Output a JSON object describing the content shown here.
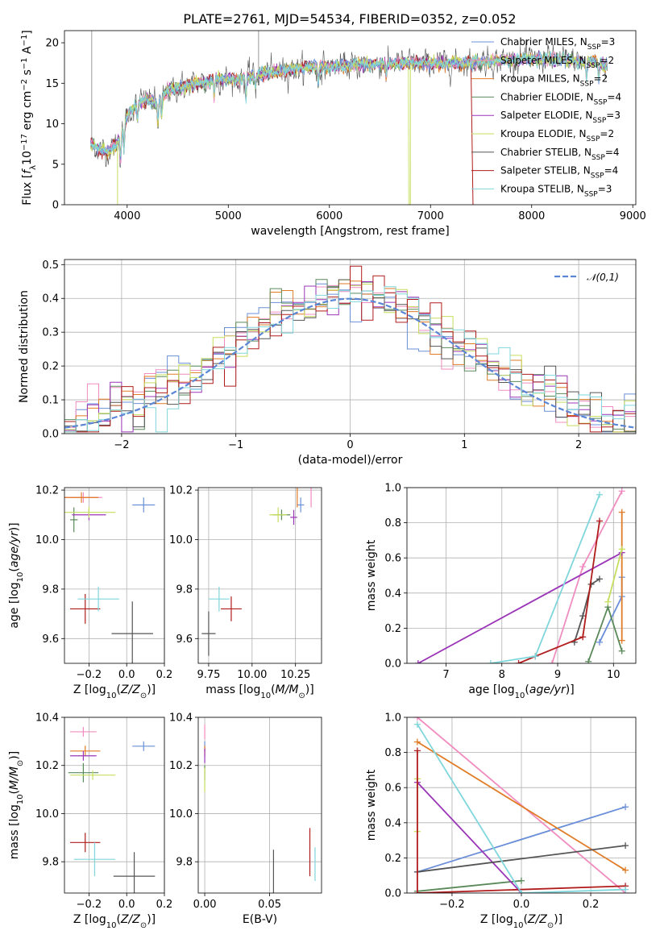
{
  "figure": {
    "title": "PLATE=2761, MJD=54534, FIBERID=0352, z=0.052"
  },
  "colors": {
    "chabrier_miles": "#6a8fd8",
    "salpeter_miles": "#f08cbf",
    "kroupa_miles": "#e07b26",
    "chabrier_elodie": "#5a8a5a",
    "salpeter_elodie": "#9b35b8",
    "kroupa_elodie": "#c5de5e",
    "chabrier_stelib": "#555555",
    "salpeter_stelib": "#b01c1c",
    "kroupa_stelib": "#7fd6dc",
    "normal": "#5b86d6"
  },
  "chart_data": [
    {
      "id": "spectrum",
      "type": "line",
      "title": "PLATE=2761, MJD=54534, FIBERID=0352, z=0.052",
      "xlabel": "wavelength [Angstrom, rest frame]",
      "ylabel": "Flux [f_λ10^-17 erg cm^-2 s^-1 A^-1]",
      "xlim": [
        3380,
        9030
      ],
      "ylim": [
        0,
        21.5
      ],
      "xticks": [
        4000,
        5000,
        6000,
        7000,
        8000,
        9000
      ],
      "yticks": [
        0,
        5,
        10,
        15,
        20
      ],
      "legend_position": "top-right",
      "legend": [
        {
          "name": "Chabrier MILES",
          "nssp": "3"
        },
        {
          "name": "Salpeter MILES",
          "nssp": "2"
        },
        {
          "name": "Kroupa MILES",
          "nssp": "2"
        },
        {
          "name": "Chabrier ELODIE",
          "nssp": "4"
        },
        {
          "name": "Salpeter ELODIE",
          "nssp": "3"
        },
        {
          "name": "Kroupa ELODIE",
          "nssp": "2"
        },
        {
          "name": "Chabrier STELIB",
          "nssp": "4"
        },
        {
          "name": "Salpeter STELIB",
          "nssp": "4"
        },
        {
          "name": "Kroupa STELIB",
          "nssp": "3"
        }
      ],
      "continuum": {
        "x": [
          3640,
          3700,
          3800,
          3900,
          3950,
          4000,
          4100,
          4200,
          4300,
          4400,
          4500,
          4700,
          4900,
          5100,
          5300,
          5500,
          5800,
          6000,
          6200,
          6400,
          6600,
          6800,
          7000,
          7200,
          7400,
          7600,
          7800,
          8000,
          8200,
          8400,
          8600,
          8750
        ],
        "y": [
          7.5,
          7.0,
          6.5,
          7.5,
          9.0,
          11.0,
          12.5,
          13.0,
          12.5,
          14.0,
          14.5,
          15.0,
          15.5,
          15.5,
          16.0,
          16.5,
          17.0,
          17.0,
          17.2,
          17.3,
          17.4,
          17.5,
          17.4,
          17.5,
          17.6,
          17.8,
          17.9,
          18.0,
          18.0,
          17.8,
          17.6,
          17.3
        ]
      }
    },
    {
      "id": "residuals",
      "type": "line",
      "xlabel": "(data-model)/error",
      "ylabel": "Normed distribution",
      "xlim": [
        -2.5,
        2.5
      ],
      "ylim": [
        0,
        0.515
      ],
      "xticks": [
        -2,
        -1,
        0,
        1,
        2
      ],
      "yticks": [
        0.0,
        0.1,
        0.2,
        0.3,
        0.4,
        0.5
      ],
      "grid": true,
      "legend_position": "top-right",
      "legend": [
        "𝒩(0,1)"
      ]
    },
    {
      "id": "age_vs_Z",
      "type": "scatter",
      "xlabel": "Z [log10(Z/Z⊙)]",
      "ylabel": "age  [log10(age/yr)]",
      "xlim": [
        -0.33,
        0.2
      ],
      "ylim": [
        9.5,
        10.21
      ],
      "xticks": [
        -0.2,
        0.0,
        0.2
      ],
      "yticks": [
        9.6,
        9.8,
        10.0,
        10.2
      ],
      "grid": true,
      "points": [
        {
          "s": "chabrier_miles",
          "x": 0.09,
          "y": 10.14,
          "xe": 0.06,
          "ye": 0.03
        },
        {
          "s": "salpeter_miles",
          "x": -0.23,
          "y": 10.17,
          "xe": 0.1,
          "ye": 0.0
        },
        {
          "s": "kroupa_miles",
          "x": -0.24,
          "y": 10.17,
          "xe": 0.09,
          "ye": 0.0
        },
        {
          "s": "chabrier_elodie",
          "x": -0.28,
          "y": 10.08,
          "xe": 0.02,
          "ye": 0.05
        },
        {
          "s": "salpeter_elodie",
          "x": -0.2,
          "y": 10.1,
          "xe": 0.09,
          "ye": 0.0
        },
        {
          "s": "kroupa_elodie",
          "x": -0.2,
          "y": 10.11,
          "xe": 0.14,
          "ye": 0.0
        },
        {
          "s": "chabrier_stelib",
          "x": 0.03,
          "y": 9.62,
          "xe": 0.11,
          "ye": 0.13
        },
        {
          "s": "salpeter_stelib",
          "x": -0.22,
          "y": 9.72,
          "xe": 0.08,
          "ye": 0.06
        },
        {
          "s": "kroupa_stelib",
          "x": -0.15,
          "y": 9.76,
          "xe": 0.11,
          "ye": 0.05
        }
      ]
    },
    {
      "id": "age_vs_mass",
      "type": "scatter",
      "xlabel": "mass [log10(M/M⊙)]",
      "ylabel": "",
      "xlim": [
        9.69,
        10.4
      ],
      "ylim": [
        9.5,
        10.21
      ],
      "xticks": [
        9.75,
        10.0,
        10.25
      ],
      "yticks": [
        9.6,
        9.8,
        10.0,
        10.2
      ],
      "grid": true,
      "points": [
        {
          "s": "chabrier_miles",
          "x": 10.28,
          "y": 10.14,
          "xe": 0.02,
          "ye": 0.03
        },
        {
          "s": "salpeter_miles",
          "x": 10.34,
          "y": 10.17,
          "xe": 0.0,
          "ye": 0.04
        },
        {
          "s": "kroupa_miles",
          "x": 10.26,
          "y": 10.17,
          "xe": 0.0,
          "ye": 0.04
        },
        {
          "s": "chabrier_elodie",
          "x": 10.17,
          "y": 10.1,
          "xe": 0.05,
          "ye": 0.0
        },
        {
          "s": "salpeter_elodie",
          "x": 10.24,
          "y": 10.09,
          "xe": 0.02,
          "ye": 0.03
        },
        {
          "s": "kroupa_elodie",
          "x": 10.15,
          "y": 10.1,
          "xe": 0.05,
          "ye": 0.03
        },
        {
          "s": "chabrier_stelib",
          "x": 9.75,
          "y": 9.62,
          "xe": 0.04,
          "ye": 0.09
        },
        {
          "s": "salpeter_stelib",
          "x": 9.88,
          "y": 9.72,
          "xe": 0.06,
          "ye": 0.05
        },
        {
          "s": "kroupa_stelib",
          "x": 9.81,
          "y": 9.76,
          "xe": 0.06,
          "ye": 0.05
        }
      ]
    },
    {
      "id": "mass_weight_vs_age",
      "type": "line",
      "xlabel": "age  [log10(age/yr)]",
      "ylabel": "mass weight",
      "xlim": [
        6.3,
        10.4
      ],
      "ylim": [
        0,
        1.0
      ],
      "xticks": [
        7,
        8,
        9,
        10
      ],
      "yticks": [
        0.0,
        0.2,
        0.4,
        0.6,
        0.8,
        1.0
      ],
      "grid": true,
      "series": [
        {
          "s": "chabrier_miles",
          "x": [
            9.75,
            10.15,
            10.15
          ],
          "y": [
            0.12,
            0.38,
            0.49
          ]
        },
        {
          "s": "salpeter_miles",
          "x": [
            8.9,
            9.45,
            10.15
          ],
          "y": [
            0.0,
            0.55,
            0.98
          ]
        },
        {
          "s": "kroupa_miles",
          "x": [
            10.15,
            10.15
          ],
          "y": [
            0.13,
            0.86
          ]
        },
        {
          "s": "chabrier_elodie",
          "x": [
            9.55,
            9.9,
            10.15
          ],
          "y": [
            0.01,
            0.32,
            0.07
          ]
        },
        {
          "s": "salpeter_elodie",
          "x": [
            6.5,
            10.15
          ],
          "y": [
            0.0,
            0.63
          ]
        },
        {
          "s": "kroupa_elodie",
          "x": [
            9.9,
            10.15
          ],
          "y": [
            0.35,
            0.65
          ]
        },
        {
          "s": "chabrier_stelib",
          "x": [
            9.3,
            9.45,
            9.6,
            9.75
          ],
          "y": [
            0.12,
            0.27,
            0.45,
            0.48
          ]
        },
        {
          "s": "salpeter_stelib",
          "x": [
            8.3,
            8.6,
            9.45,
            9.75
          ],
          "y": [
            0.0,
            0.04,
            0.15,
            0.81
          ]
        },
        {
          "s": "kroupa_stelib",
          "x": [
            7.8,
            8.6,
            9.75
          ],
          "y": [
            0.0,
            0.04,
            0.96
          ]
        }
      ]
    },
    {
      "id": "mass_vs_Z",
      "type": "scatter",
      "xlabel": "Z [log10(Z/Z⊙)]",
      "ylabel": "mass [log10(M/M⊙)]",
      "xlim": [
        -0.33,
        0.2
      ],
      "ylim": [
        9.67,
        10.4
      ],
      "xticks": [
        -0.2,
        0.0,
        0.2
      ],
      "yticks": [
        9.8,
        10.0,
        10.2,
        10.4
      ],
      "grid": true,
      "points": [
        {
          "s": "chabrier_miles",
          "x": 0.09,
          "y": 10.28,
          "xe": 0.06,
          "ye": 0.02
        },
        {
          "s": "salpeter_miles",
          "x": -0.23,
          "y": 10.34,
          "xe": 0.07,
          "ye": 0.02
        },
        {
          "s": "kroupa_miles",
          "x": -0.22,
          "y": 10.26,
          "xe": 0.08,
          "ye": 0.0
        },
        {
          "s": "chabrier_elodie",
          "x": -0.23,
          "y": 10.17,
          "xe": 0.08,
          "ye": 0.04
        },
        {
          "s": "salpeter_elodie",
          "x": -0.23,
          "y": 10.24,
          "xe": 0.07,
          "ye": 0.02
        },
        {
          "s": "kroupa_elodie",
          "x": -0.18,
          "y": 10.16,
          "xe": 0.12,
          "ye": 0.02
        },
        {
          "s": "chabrier_stelib",
          "x": 0.04,
          "y": 9.74,
          "xe": 0.11,
          "ye": 0.1
        },
        {
          "s": "salpeter_stelib",
          "x": -0.22,
          "y": 9.88,
          "xe": 0.08,
          "ye": 0.04
        },
        {
          "s": "kroupa_stelib",
          "x": -0.17,
          "y": 9.81,
          "xe": 0.11,
          "ye": 0.07
        }
      ]
    },
    {
      "id": "mass_vs_EBV",
      "type": "scatter",
      "xlabel": "E(B-V)",
      "ylabel": "",
      "xlim": [
        -0.005,
        0.09
      ],
      "ylim": [
        9.67,
        10.4
      ],
      "xticks": [
        0.0,
        0.05
      ],
      "yticks": [
        9.8,
        10.0,
        10.2,
        10.4
      ],
      "grid": true,
      "points": [
        {
          "s": "chabrier_miles",
          "x": 0.0,
          "y": 10.28,
          "xe": 0.0,
          "ye": 0.02
        },
        {
          "s": "salpeter_miles",
          "x": 0.0,
          "y": 10.34,
          "xe": 0.0,
          "ye": 0.03
        },
        {
          "s": "kroupa_miles",
          "x": 0.0,
          "y": 10.26,
          "xe": 0.0,
          "ye": 0.0
        },
        {
          "s": "chabrier_elodie",
          "x": 0.0,
          "y": 10.17,
          "xe": 0.0,
          "ye": 0.03
        },
        {
          "s": "salpeter_elodie",
          "x": 0.0,
          "y": 10.24,
          "xe": 0.0,
          "ye": 0.03
        },
        {
          "s": "kroupa_elodie",
          "x": 0.0,
          "y": 10.14,
          "xe": 0.0,
          "ye": 0.05
        },
        {
          "s": "chabrier_stelib",
          "x": 0.053,
          "y": 9.74,
          "xe": 0.0,
          "ye": 0.11
        },
        {
          "s": "salpeter_stelib",
          "x": 0.081,
          "y": 9.84,
          "xe": 0.0,
          "ye": 0.1
        },
        {
          "s": "kroupa_stelib",
          "x": 0.085,
          "y": 9.79,
          "xe": 0.0,
          "ye": 0.07
        }
      ]
    },
    {
      "id": "mass_weight_vs_Z",
      "type": "line",
      "xlabel": "Z [log10(Z/Z⊙)]",
      "ylabel": "mass weight",
      "xlim": [
        -0.33,
        0.33
      ],
      "ylim": [
        0,
        1.0
      ],
      "xticks": [
        -0.2,
        0.0,
        0.2
      ],
      "yticks": [
        0.0,
        0.2,
        0.4,
        0.6,
        0.8,
        1.0
      ],
      "grid": true,
      "series": [
        {
          "s": "chabrier_miles",
          "x": [
            -0.3,
            0.3
          ],
          "y": [
            0.12,
            0.49
          ]
        },
        {
          "s": "salpeter_miles",
          "x": [
            -0.3,
            0.3
          ],
          "y": [
            1.0,
            0.0
          ]
        },
        {
          "s": "kroupa_miles",
          "x": [
            -0.3,
            0.3
          ],
          "y": [
            0.86,
            0.13
          ]
        },
        {
          "s": "chabrier_elodie",
          "x": [
            -0.3,
            0.0
          ],
          "y": [
            0.01,
            0.07
          ]
        },
        {
          "s": "salpeter_elodie",
          "x": [
            -0.3,
            0.0
          ],
          "y": [
            0.63,
            0.0
          ]
        },
        {
          "s": "kroupa_elodie",
          "x": [
            -0.3,
            -0.3
          ],
          "y": [
            0.35,
            0.65
          ]
        },
        {
          "s": "chabrier_stelib",
          "x": [
            -0.3,
            0.3
          ],
          "y": [
            0.12,
            0.27
          ]
        },
        {
          "s": "salpeter_stelib",
          "x": [
            -0.3,
            -0.3,
            0.3
          ],
          "y": [
            0.81,
            0.0,
            0.04
          ]
        },
        {
          "s": "kroupa_stelib",
          "x": [
            -0.3,
            0.0,
            0.3
          ],
          "y": [
            0.96,
            0.0,
            0.02
          ]
        }
      ]
    }
  ]
}
